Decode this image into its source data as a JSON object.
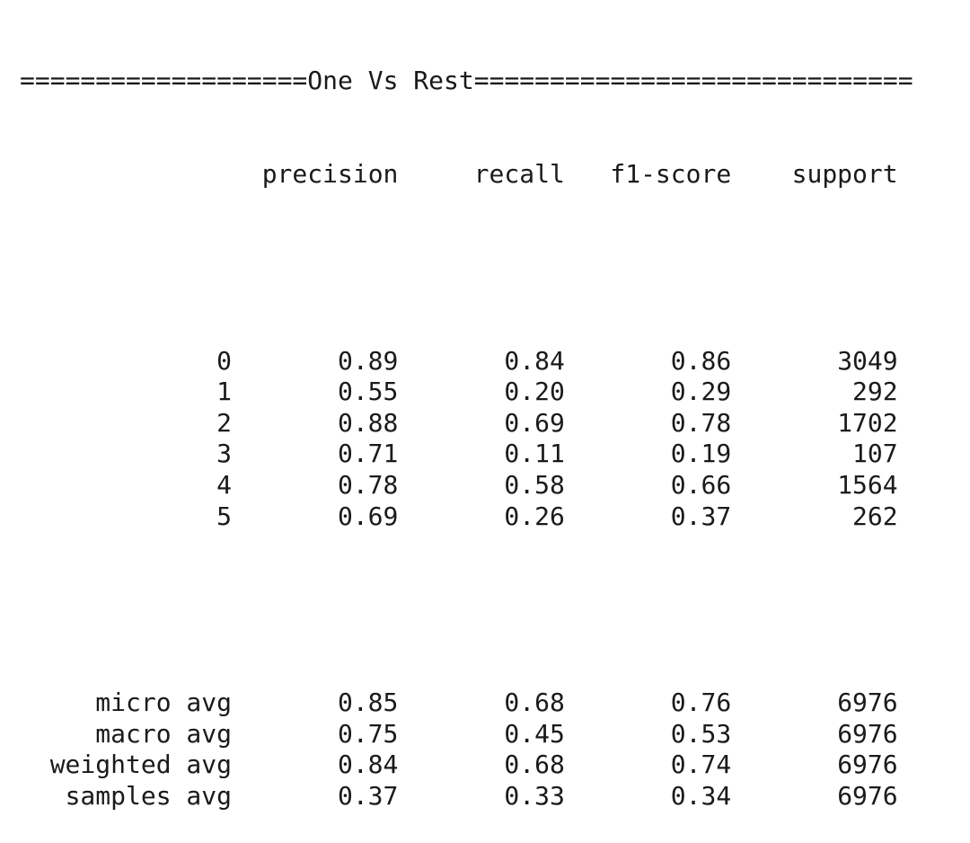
{
  "report": {
    "title": "One Vs Rest",
    "title_fill": "=",
    "title_left_count": 19,
    "title_right_count": 29,
    "headers": [
      "precision",
      "recall",
      "f1-score",
      "support"
    ],
    "classes": [
      {
        "label": "0",
        "precision": "0.89",
        "recall": "0.84",
        "f1": "0.86",
        "support": "3049"
      },
      {
        "label": "1",
        "precision": "0.55",
        "recall": "0.20",
        "f1": "0.29",
        "support": "292"
      },
      {
        "label": "2",
        "precision": "0.88",
        "recall": "0.69",
        "f1": "0.78",
        "support": "1702"
      },
      {
        "label": "3",
        "precision": "0.71",
        "recall": "0.11",
        "f1": "0.19",
        "support": "107"
      },
      {
        "label": "4",
        "precision": "0.78",
        "recall": "0.58",
        "f1": "0.66",
        "support": "1564"
      },
      {
        "label": "5",
        "precision": "0.69",
        "recall": "0.26",
        "f1": "0.37",
        "support": "262"
      }
    ],
    "averages": [
      {
        "label": "micro avg",
        "precision": "0.85",
        "recall": "0.68",
        "f1": "0.76",
        "support": "6976"
      },
      {
        "label": "macro avg",
        "precision": "0.75",
        "recall": "0.45",
        "f1": "0.53",
        "support": "6976"
      },
      {
        "label": "weighted avg",
        "precision": "0.84",
        "recall": "0.68",
        "f1": "0.74",
        "support": "6976"
      },
      {
        "label": "samples avg",
        "precision": "0.37",
        "recall": "0.33",
        "f1": "0.34",
        "support": "6976"
      }
    ]
  }
}
